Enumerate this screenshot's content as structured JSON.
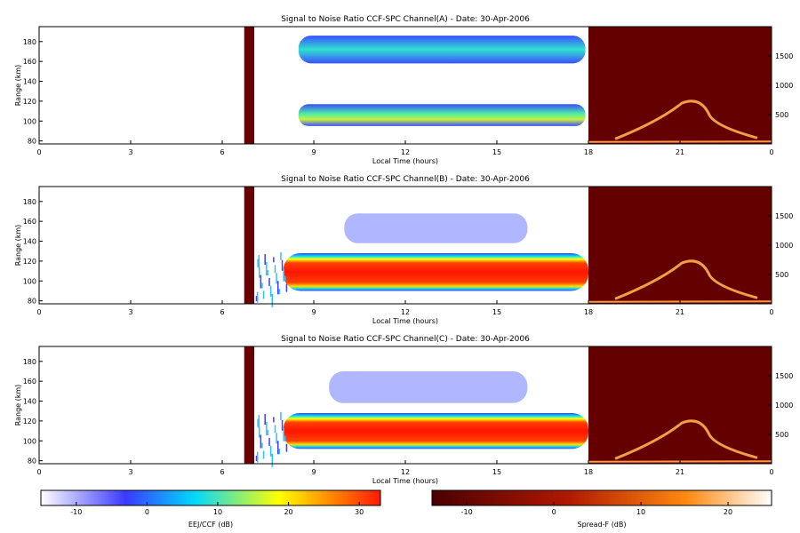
{
  "chart_data": [
    {
      "type": "heatmap",
      "title": "Signal to Noise Ratio CCF-SPC Channel(A) - Date: 30-Apr-2006",
      "xlabel": "Local Time (hours)",
      "ylabel": "Range (km)",
      "xlim": [
        0,
        24
      ],
      "ylim": [
        77,
        195
      ],
      "x_ticks": [
        "0",
        "3",
        "6",
        "9",
        "12",
        "15",
        "18",
        "21",
        "0"
      ],
      "y_ticks": [
        "80",
        "100",
        "120",
        "140",
        "160",
        "180"
      ],
      "right_axis_ticks": [
        "500",
        "1000",
        "1500"
      ],
      "colorbar": "EEJ/CCF (dB)",
      "layers": [
        {
          "time": [
            8.5,
            17.9
          ],
          "range": [
            158,
            186
          ],
          "peak_snr_db": 8
        },
        {
          "time": [
            8.5,
            17.9
          ],
          "range": [
            95,
            117
          ],
          "peak_snr_db": 15
        }
      ],
      "spread_f_panel": {
        "time": [
          18,
          24
        ],
        "colorbar": "Spread-F (dB)"
      }
    },
    {
      "type": "heatmap",
      "title": "Signal to Noise Ratio CCF-SPC Channel(B) - Date: 30-Apr-2006",
      "xlabel": "Local Time (hours)",
      "ylabel": "Range (km)",
      "xlim": [
        0,
        24
      ],
      "ylim": [
        77,
        195
      ],
      "x_ticks": [
        "0",
        "3",
        "6",
        "9",
        "12",
        "15",
        "18",
        "21",
        "0"
      ],
      "y_ticks": [
        "80",
        "100",
        "120",
        "140",
        "160",
        "180"
      ],
      "right_axis_ticks": [
        "500",
        "1000",
        "1500"
      ],
      "colorbar": "EEJ/CCF (dB)",
      "layers": [
        {
          "time": [
            10,
            16
          ],
          "range": [
            138,
            168
          ],
          "peak_snr_db": -8
        },
        {
          "time": [
            8.0,
            18.0
          ],
          "range": [
            90,
            128
          ],
          "peak_snr_db": 32
        }
      ],
      "spread_f_panel": {
        "time": [
          18,
          24
        ],
        "colorbar": "Spread-F (dB)"
      }
    },
    {
      "type": "heatmap",
      "title": "Signal to Noise Ratio CCF-SPC Channel(C) - Date: 30-Apr-2006",
      "xlabel": "Local Time (hours)",
      "ylabel": "Range (km)",
      "xlim": [
        0,
        24
      ],
      "ylim": [
        77,
        195
      ],
      "x_ticks": [
        "0",
        "3",
        "6",
        "9",
        "12",
        "15",
        "18",
        "21",
        "0"
      ],
      "y_ticks": [
        "80",
        "100",
        "120",
        "140",
        "160",
        "180"
      ],
      "right_axis_ticks": [
        "500",
        "1000",
        "1500"
      ],
      "colorbar": "EEJ/CCF (dB)",
      "layers": [
        {
          "time": [
            9.5,
            16
          ],
          "range": [
            138,
            170
          ],
          "peak_snr_db": -6
        },
        {
          "time": [
            8.0,
            18.0
          ],
          "range": [
            92,
            128
          ],
          "peak_snr_db": 32
        }
      ],
      "spread_f_panel": {
        "time": [
          18,
          24
        ],
        "colorbar": "Spread-F (dB)"
      }
    }
  ],
  "colorbars": [
    {
      "label": "EEJ/CCF (dB)",
      "range": [
        -15,
        33
      ],
      "ticks": [
        "-10",
        "0",
        "10",
        "20",
        "30"
      ],
      "tick_values": [
        -10,
        0,
        10,
        20,
        30
      ],
      "colors": [
        "#ffffff",
        "#3030ff",
        "#00e0ff",
        "#ffff00",
        "#ff2000"
      ]
    },
    {
      "label": "Spread-F (dB)",
      "range": [
        -14,
        25
      ],
      "ticks": [
        "-10",
        "0",
        "10",
        "20"
      ],
      "tick_values": [
        -10,
        0,
        10,
        20
      ],
      "colors": [
        "#5a0000",
        "#c02000",
        "#ff8000",
        "#ffffff"
      ]
    }
  ]
}
